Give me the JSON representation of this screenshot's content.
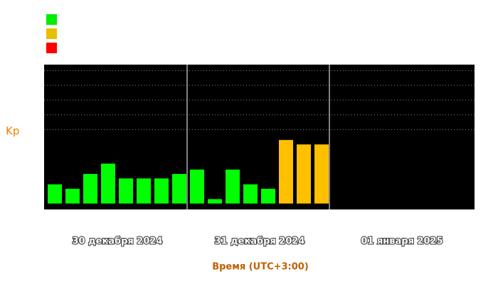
{
  "chart_data": {
    "type": "bar",
    "y_label": "Kp",
    "x_label": "Время (UTC+3:00)",
    "day_labels": [
      "30 декабря 2024",
      "31 декабря 2024",
      "01 января 2025"
    ],
    "categories": [
      null,
      null,
      null,
      null,
      null,
      null,
      null,
      null,
      null,
      null,
      null,
      null,
      null,
      null,
      null,
      null,
      null,
      null,
      null,
      null,
      null,
      null,
      null,
      null
    ],
    "values": [
      1.3,
      1,
      2,
      2.7,
      1.7,
      1.7,
      1.7,
      2,
      2.3,
      0.3,
      2.3,
      1.3,
      1,
      4.3,
      4,
      4,
      null,
      null,
      null,
      null,
      null,
      null,
      null,
      null
    ],
    "colors": [
      "#00ff00",
      "#00ff00",
      "#00ff00",
      "#00ff00",
      "#00ff00",
      "#00ff00",
      "#00ff00",
      "#00ff00",
      "#00ff00",
      "#00ff00",
      "#00ff00",
      "#00ff00",
      "#00ff00",
      "#ffc000",
      "#ffc000",
      "#ffc000",
      null,
      null,
      null,
      null,
      null,
      null,
      null,
      null
    ],
    "legend_colors": [
      "#00ee00",
      "#e6c000",
      "#ff0000"
    ],
    "ylim": [
      -0.4,
      9.4
    ],
    "yticks": [
      5,
      6,
      7,
      8,
      9
    ],
    "grid": true
  }
}
